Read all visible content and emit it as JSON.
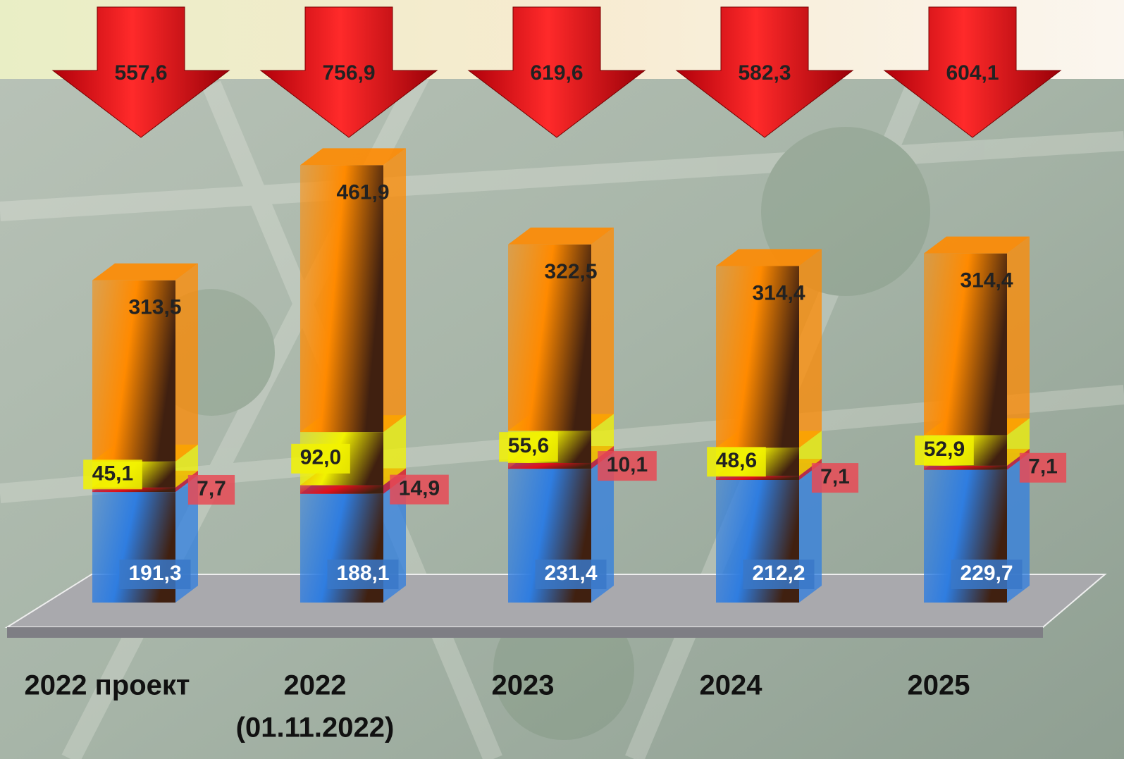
{
  "chart_data": {
    "type": "stacked-bar-3d",
    "categories": [
      [
        "2022 проект"
      ],
      [
        "2022",
        "(01.11.2022)"
      ],
      [
        "2023"
      ],
      [
        "2024"
      ],
      [
        "2025"
      ]
    ],
    "series": [
      {
        "color": "#2f7de0",
        "values": [
          191.3,
          188.1,
          231.4,
          212.2,
          229.7
        ],
        "value_labels": [
          "191,3",
          "188,1",
          "231,4",
          "212,2",
          "229,7"
        ]
      },
      {
        "color": "#e0101a",
        "values": [
          7.7,
          14.9,
          10.1,
          7.1,
          7.1
        ],
        "value_labels": [
          "7,7",
          "14,9",
          "10,1",
          "7,1",
          "7,1"
        ]
      },
      {
        "color": "#f2f200",
        "values": [
          45.1,
          92.0,
          55.6,
          48.6,
          52.9
        ],
        "value_labels": [
          "45,1",
          "92,0",
          "55,6",
          "48,6",
          "52,9"
        ]
      },
      {
        "color": "#ff8a00",
        "values": [
          313.5,
          461.9,
          322.5,
          314.4,
          314.4
        ],
        "value_labels": [
          "313,5",
          "461,9",
          "322,5",
          "314,4",
          "314,4"
        ]
      }
    ],
    "totals": [
      557.6,
      756.9,
      619.6,
      582.3,
      604.1
    ],
    "total_labels": [
      "557,6",
      "756,9",
      "619,6",
      "582,3",
      "604,1"
    ]
  }
}
